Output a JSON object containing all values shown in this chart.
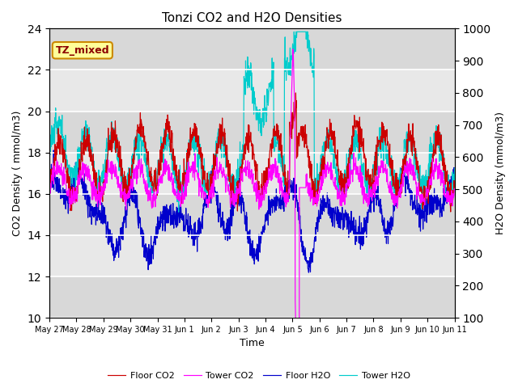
{
  "title": "Tonzi CO2 and H2O Densities",
  "xlabel": "Time",
  "ylabel_left": "CO2 Density ( mmol/m3)",
  "ylabel_right": "H2O Density (mmol/m3)",
  "annotation": "TZ_mixed",
  "ylim_left": [
    10,
    24
  ],
  "ylim_right": [
    100,
    1000
  ],
  "yticks_left": [
    10,
    12,
    14,
    16,
    18,
    20,
    22,
    24
  ],
  "yticks_right": [
    100,
    200,
    300,
    400,
    500,
    600,
    700,
    800,
    900,
    1000
  ],
  "xtick_labels": [
    "May 27",
    "May 28",
    "May 29",
    "May 30",
    "May 31",
    "Jun 1",
    "Jun 2",
    "Jun 3",
    "Jun 4",
    "Jun 5",
    "Jun 6",
    "Jun 7",
    "Jun 8",
    "Jun 9",
    "Jun 10",
    "Jun 11"
  ],
  "n_days": 15,
  "n_pts_per_day": 96,
  "colors": {
    "floor_co2": "#cc0000",
    "tower_co2": "#ff00ff",
    "floor_h2o": "#0000cc",
    "tower_h2o": "#00cccc"
  },
  "legend_labels": [
    "Floor CO2",
    "Tower CO2",
    "Floor H2O",
    "Tower H2O"
  ],
  "band_colors": [
    "#d8d8d8",
    "#e8e8e8"
  ],
  "grid_color": "#ffffff",
  "seed": 42
}
